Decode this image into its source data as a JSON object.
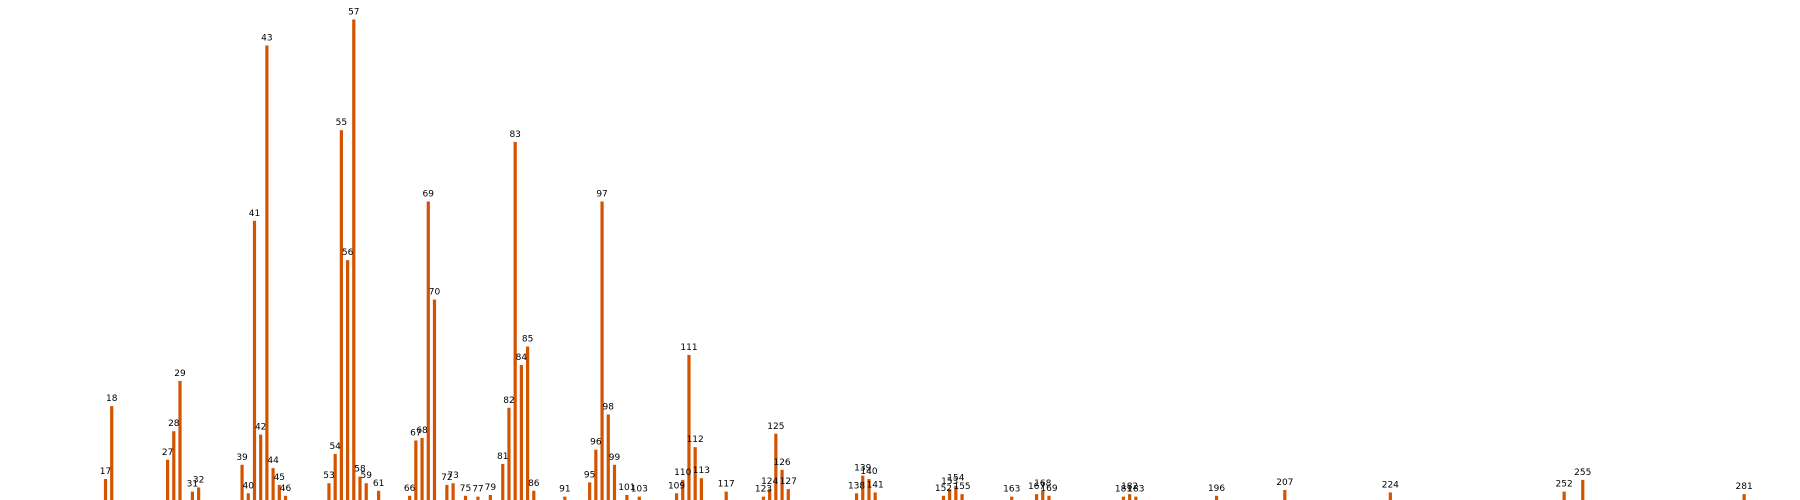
{
  "chart_data": {
    "type": "bar",
    "title": "",
    "xlabel": "",
    "ylabel": "",
    "grid": false,
    "axes_visible": false,
    "bar_color": "#d35400",
    "xlim": [
      0,
      290
    ],
    "ylim": [
      0,
      57
    ],
    "x": [
      17,
      18,
      27,
      28,
      29,
      31,
      32,
      39,
      40,
      41,
      42,
      43,
      44,
      45,
      46,
      53,
      54,
      55,
      56,
      57,
      58,
      59,
      61,
      66,
      67,
      68,
      69,
      70,
      72,
      73,
      75,
      77,
      79,
      81,
      82,
      83,
      84,
      85,
      86,
      91,
      95,
      96,
      97,
      98,
      99,
      101,
      103,
      109,
      110,
      111,
      112,
      113,
      117,
      123,
      124,
      125,
      126,
      127,
      138,
      139,
      140,
      141,
      152,
      153,
      154,
      155,
      163,
      167,
      168,
      169,
      181,
      182,
      183,
      196,
      207,
      224,
      252,
      255,
      281
    ],
    "values": [
      2.5,
      11.2,
      4.8,
      8.2,
      14.2,
      1,
      1.5,
      4.2,
      0.8,
      33.3,
      7.8,
      54.2,
      3.8,
      1.8,
      0.5,
      2,
      5.5,
      44.1,
      28.6,
      57.3,
      2.8,
      2,
      1.1,
      0.5,
      7.1,
      7.4,
      35.6,
      23.9,
      1.8,
      2,
      0.5,
      0.4,
      0.6,
      4.3,
      11,
      42.7,
      16.1,
      18.3,
      1.1,
      0.4,
      2.1,
      6,
      35.6,
      10.2,
      4.2,
      0.6,
      0.4,
      0.8,
      2.4,
      17.3,
      6.3,
      2.6,
      1,
      0.4,
      1.3,
      7.9,
      3.6,
      1.3,
      0.8,
      2.9,
      2.5,
      0.9,
      0.5,
      1.3,
      1.7,
      0.7,
      0.4,
      0.7,
      1.1,
      0.5,
      0.4,
      0.7,
      0.4,
      0.5,
      1.2,
      0.9,
      1,
      2.4,
      0.7
    ]
  }
}
